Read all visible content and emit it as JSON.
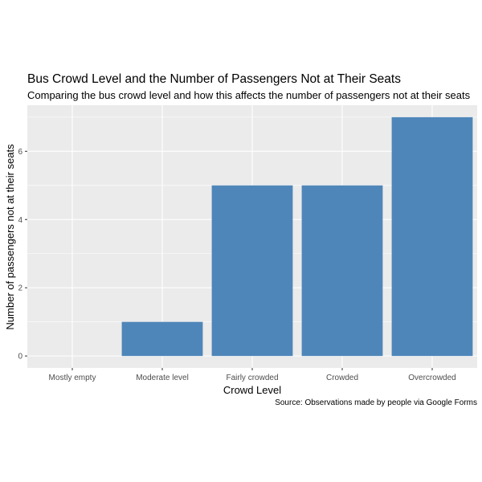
{
  "chart_data": {
    "type": "bar",
    "title": "Bus Crowd Level and the Number of Passengers Not at Their Seats",
    "subtitle": "Comparing the bus crowd level and how this affects the number of passengers not at their seats",
    "caption": "Source: Observations made by people via Google Forms",
    "xlabel": "Crowd Level",
    "ylabel": "Number of passengers not at their seats",
    "categories": [
      "Mostly empty",
      "Moderate level",
      "Fairly crowded",
      "Crowded",
      "Overcrowded"
    ],
    "values": [
      0,
      1,
      5,
      5,
      7
    ],
    "yticks": [
      "0",
      "2",
      "4",
      "6"
    ],
    "ylim": [
      -0.35,
      7.35
    ],
    "grid": true,
    "bar_color": "#4f86b9",
    "panel_color": "#ebebeb"
  }
}
